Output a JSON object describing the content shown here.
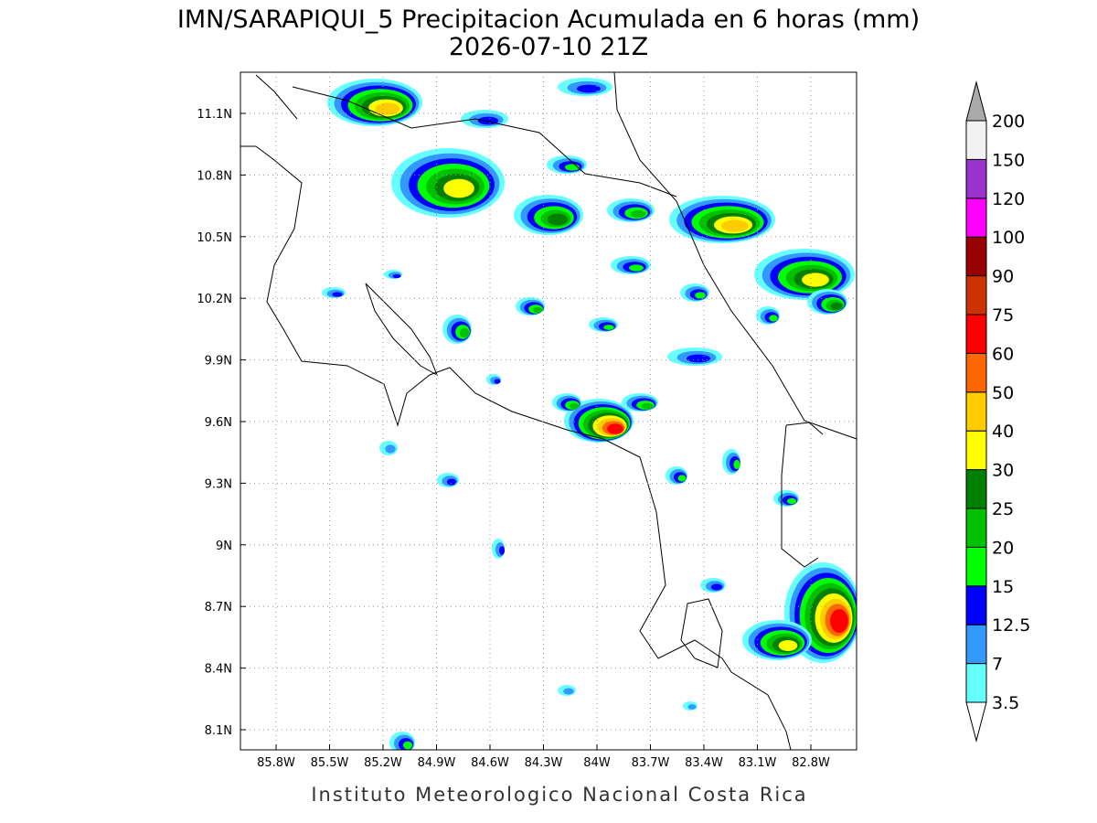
{
  "title": "IMN/SARAPIQUI_5 Precipitacion Acumulada en 6 horas (mm)",
  "subtitle": "2026-07-10 21Z",
  "footer": "Instituto Meteorologico Nacional Costa Rica",
  "map": {
    "lon_ticks": [
      "85.8W",
      "85.5W",
      "85.2W",
      "84.9W",
      "84.6W",
      "84.3W",
      "84W",
      "83.7W",
      "83.4W",
      "83.1W",
      "82.8W"
    ],
    "lat_ticks": [
      "11.1N",
      "10.8N",
      "10.5N",
      "10.2N",
      "9.9N",
      "9.6N",
      "9.3N",
      "9N",
      "8.7N",
      "8.4N",
      "8.1N"
    ]
  },
  "colorbar": {
    "levels": [
      "3.5",
      "7",
      "12.5",
      "15",
      "20",
      "25",
      "30",
      "40",
      "50",
      "60",
      "75",
      "90",
      "100",
      "120",
      "150",
      "200"
    ],
    "colors": [
      "#66ffff",
      "#3399ff",
      "#0000ff",
      "#00ff00",
      "#00c000",
      "#008000",
      "#ffff00",
      "#ffcc00",
      "#ff6600",
      "#ff0000",
      "#cc3300",
      "#990000",
      "#ff00ff",
      "#9933cc",
      "#f2f2f2"
    ],
    "over_color": "#aaaaaa",
    "under_color": "#ffffff"
  }
}
